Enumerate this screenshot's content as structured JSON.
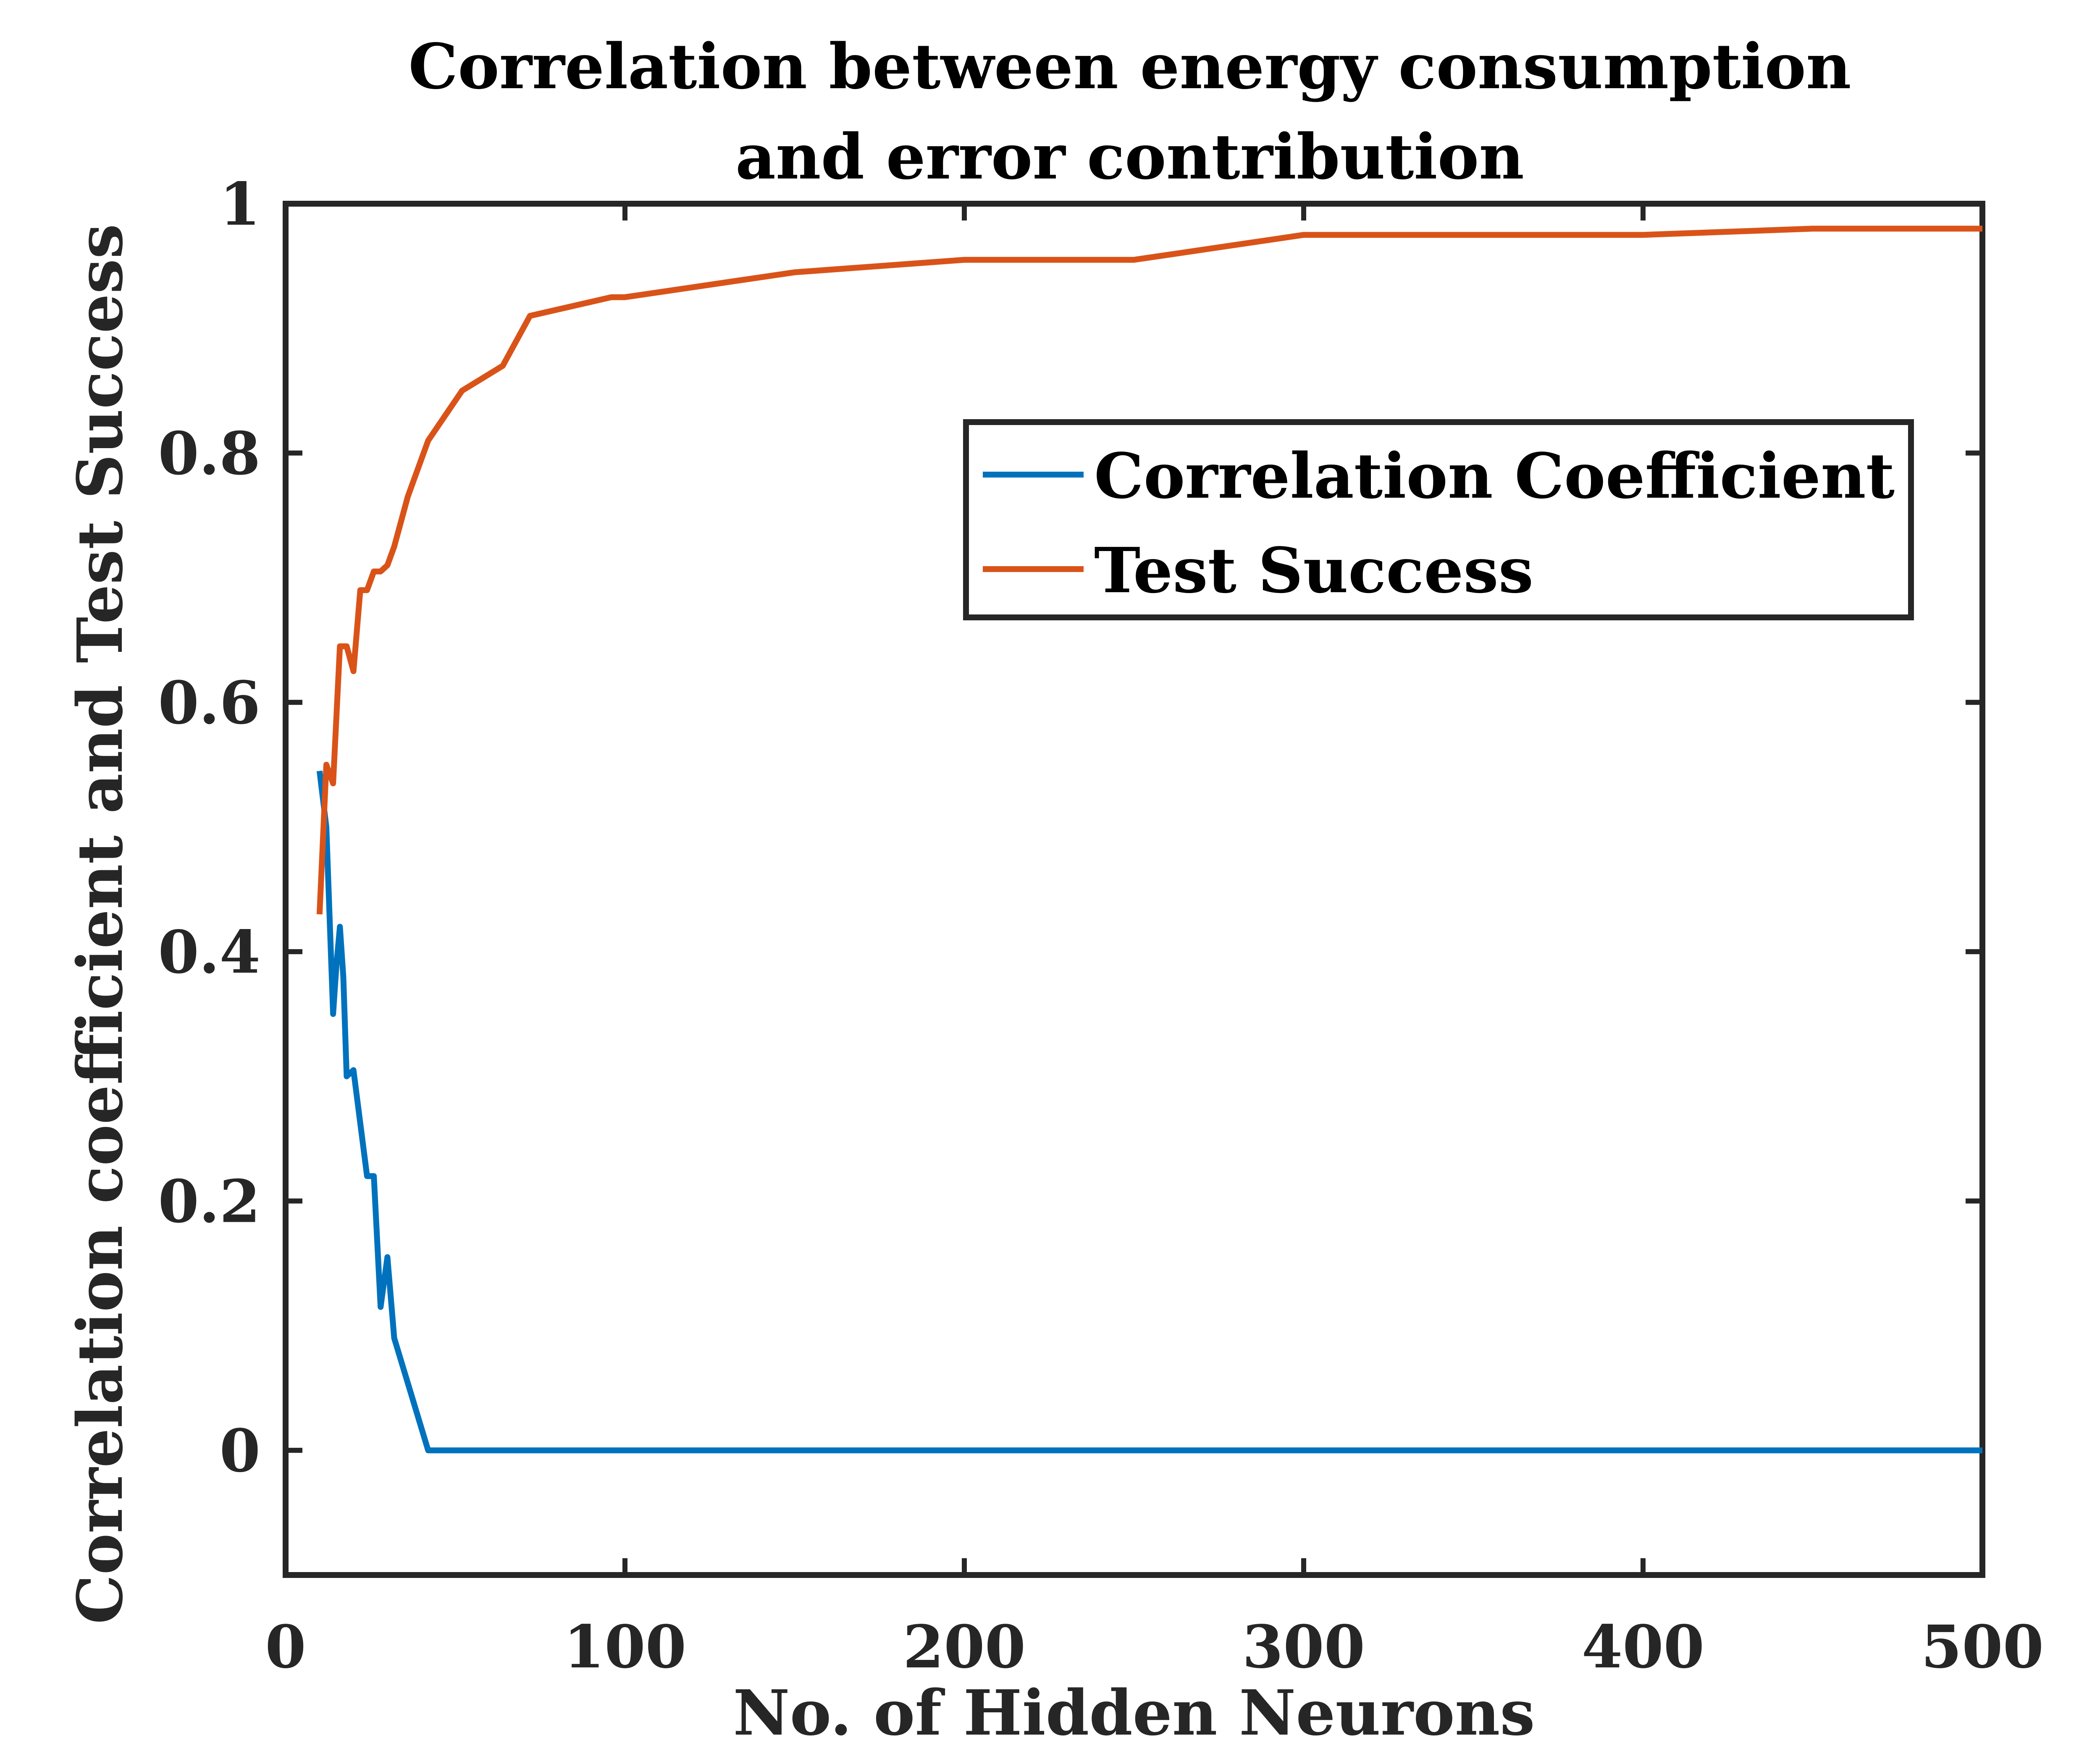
{
  "chart_data": {
    "type": "line",
    "title": [
      "Correlation between energy consumption",
      "and error contribution"
    ],
    "xlabel": "No. of Hidden Neurons",
    "ylabel": "Correlation coefficient and Test Success",
    "xlim": [
      0,
      500
    ],
    "ylim": [
      -0.1,
      1.0
    ],
    "x_ticks": [
      0,
      100,
      200,
      300,
      400,
      500
    ],
    "y_ticks": [
      0,
      0.2,
      0.4,
      0.6,
      0.8,
      1
    ],
    "x_tick_labels": [
      "0",
      "100",
      "200",
      "300",
      "400",
      "500"
    ],
    "y_tick_labels": [
      "0",
      "0.2",
      "0.4",
      "0.6",
      "0.8",
      "1"
    ],
    "grid": false,
    "legend_position": "top-right",
    "colors": {
      "correlation": "#0072BD",
      "test_success": "#D95319",
      "axes": "#262626"
    },
    "series": [
      {
        "name": "Correlation Coefficient",
        "x": [
          10,
          12,
          14,
          15,
          16,
          17,
          18,
          20,
          24,
          26,
          28,
          30,
          32,
          42,
          500
        ],
        "y": [
          0.545,
          0.5,
          0.35,
          0.39,
          0.42,
          0.38,
          0.3,
          0.305,
          0.22,
          0.22,
          0.115,
          0.155,
          0.09,
          0.0,
          0.0
        ]
      },
      {
        "name": "Test Success",
        "x": [
          10,
          12,
          14,
          16,
          18,
          20,
          22,
          24,
          26,
          28,
          30,
          32,
          36,
          42,
          52,
          64,
          72,
          96,
          100,
          150,
          200,
          250,
          300,
          400,
          450,
          500
        ],
        "y": [
          0.43,
          0.55,
          0.535,
          0.645,
          0.645,
          0.625,
          0.69,
          0.69,
          0.705,
          0.705,
          0.71,
          0.725,
          0.765,
          0.81,
          0.85,
          0.87,
          0.91,
          0.925,
          0.925,
          0.945,
          0.955,
          0.955,
          0.975,
          0.975,
          0.98,
          0.98
        ]
      }
    ]
  }
}
